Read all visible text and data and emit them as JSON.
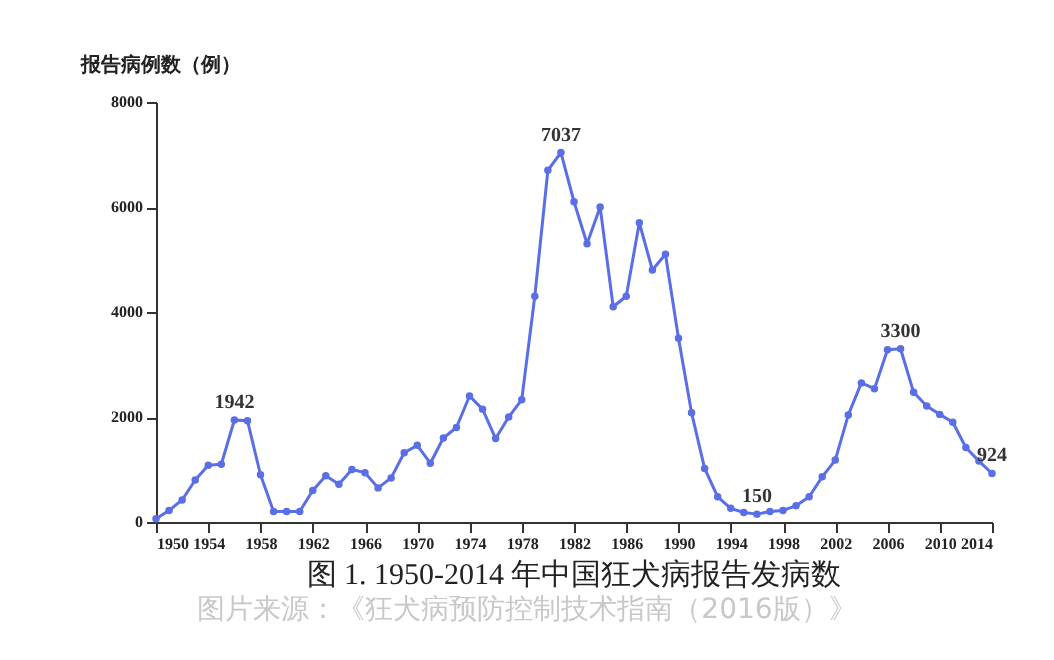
{
  "chart_data": {
    "type": "line",
    "title": "图 1. 1950-2014 年中国狂犬病报告发病数",
    "ylabel": "报告病例数（例）",
    "x": [
      1950,
      1951,
      1952,
      1953,
      1954,
      1955,
      1956,
      1957,
      1958,
      1959,
      1960,
      1961,
      1962,
      1963,
      1964,
      1965,
      1966,
      1967,
      1968,
      1969,
      1970,
      1971,
      1972,
      1973,
      1974,
      1975,
      1976,
      1977,
      1978,
      1979,
      1980,
      1981,
      1982,
      1983,
      1984,
      1985,
      1986,
      1987,
      1988,
      1989,
      1990,
      1991,
      1992,
      1993,
      1994,
      1995,
      1996,
      1997,
      1998,
      1999,
      2000,
      2001,
      2002,
      2003,
      2004,
      2005,
      2006,
      2007,
      2008,
      2009,
      2010,
      2011,
      2012,
      2013,
      2014
    ],
    "series": [
      {
        "color": "#5a6ee6",
        "values": [
          60,
          220,
          420,
          800,
          1080,
          1100,
          1942,
          1930,
          900,
          200,
          200,
          200,
          600,
          880,
          720,
          1000,
          940,
          650,
          840,
          1320,
          1460,
          1120,
          1600,
          1800,
          2400,
          2150,
          1590,
          2000,
          2330,
          4300,
          6700,
          7037,
          6100,
          5300,
          6000,
          4100,
          4300,
          5700,
          4800,
          5100,
          3500,
          2080,
          1020,
          480,
          260,
          180,
          150,
          200,
          220,
          310,
          480,
          860,
          1180,
          2040,
          2650,
          2540,
          3280,
          3300,
          2470,
          2210,
          2050,
          1900,
          1420,
          1160,
          924
        ]
      }
    ],
    "xlim": [
      1950,
      2014
    ],
    "xticks": [
      1950,
      1954,
      1958,
      1962,
      1966,
      1970,
      1974,
      1978,
      1982,
      1986,
      1990,
      1994,
      1998,
      2002,
      2006,
      2010,
      2014
    ],
    "ylim": [
      0,
      8000
    ],
    "yticks": [
      0,
      2000,
      4000,
      6000,
      8000
    ],
    "grid": false,
    "marker": "circle",
    "line_style": "solid",
    "legend": false,
    "annotations": [
      {
        "text": "1942",
        "x": 1956,
        "y": 1942
      },
      {
        "text": "7037",
        "x": 1981,
        "y": 7037
      },
      {
        "text": "150",
        "x": 1996,
        "y": 150
      },
      {
        "text": "3300",
        "x": 2007,
        "y": 3300
      },
      {
        "text": "924",
        "x": 2014,
        "y": 924
      },
      "图片来源：《狂犬病预防控制技术指南（2016版）》"
    ]
  }
}
